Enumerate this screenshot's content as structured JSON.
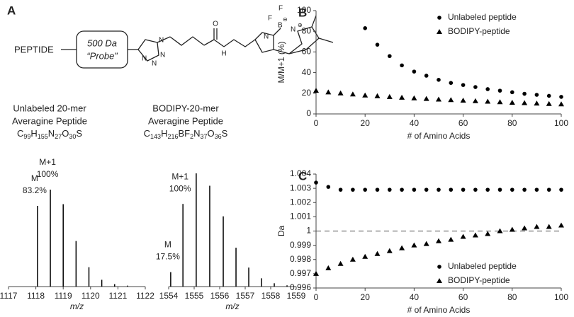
{
  "panel_a": {
    "panel": "A",
    "peptide": "PEPTIDE",
    "probe_mass": "500 Da",
    "probe_name": "“Probe”",
    "atoms": [
      "N",
      "N",
      "N",
      "N",
      "H",
      "O",
      "F",
      "F",
      "B",
      "⊖",
      "N",
      "N",
      "⊕"
    ],
    "compounds": [
      {
        "name": "Unlabeled 20-mer",
        "kind": "Averagine Peptide",
        "formula": [
          "C",
          "99",
          "H",
          "155",
          "N",
          "27",
          "O",
          "30",
          "S"
        ]
      },
      {
        "name": "BODIPY-20-mer",
        "kind": "Averagine Peptide",
        "formula": [
          "C",
          "143",
          "H",
          "216",
          "BF",
          "2",
          "N",
          "37",
          "O",
          "36",
          "S"
        ]
      }
    ]
  },
  "chart_data": [
    {
      "type": "stem",
      "x_label": "m/z",
      "x": [
        1118.06,
        1118.53,
        1119.0,
        1119.47,
        1119.94,
        1120.41,
        1120.88,
        1121.35
      ],
      "values": [
        83.2,
        100,
        85,
        47,
        20,
        7,
        2.5,
        1
      ],
      "peak_names": [
        "M",
        "M+1",
        null,
        null,
        null,
        null,
        null,
        null
      ],
      "value_labels": [
        "83.2%",
        "100%",
        null,
        null,
        null,
        null,
        null,
        null
      ],
      "color": "#000000",
      "xlim": [
        1117,
        1122
      ],
      "xticks": [
        1117,
        1118,
        1119,
        1120,
        1121,
        1122
      ]
    },
    {
      "type": "stem",
      "x_label": "m/z",
      "x": [
        1554.08,
        1554.56,
        1555.08,
        1555.61,
        1556.14,
        1556.64,
        1557.14,
        1557.64,
        1558.14,
        1558.64
      ],
      "values": [
        17.5,
        100,
        137,
        122,
        85,
        47,
        23,
        10,
        4,
        1.5
      ],
      "peak_names": [
        "M",
        "M+1",
        null,
        null,
        null,
        null,
        null,
        null,
        null,
        null
      ],
      "value_labels": [
        "17.5%",
        "100%",
        null,
        null,
        null,
        null,
        null,
        null,
        null,
        null
      ],
      "color": "#000000",
      "xlim": [
        1554,
        1559
      ],
      "xticks": [
        1554,
        1555,
        1556,
        1557,
        1558,
        1559
      ]
    },
    {
      "type": "scatter",
      "panel": "B",
      "x_label": "# of Amino Acids",
      "y_label": "M/M+1 (%)",
      "legend": "upper right",
      "xlim": [
        0,
        100
      ],
      "xticks": [
        0,
        20,
        40,
        60,
        80,
        100
      ],
      "ylim": [
        0,
        100
      ],
      "yticks": [
        0,
        20,
        40,
        60,
        80,
        100
      ],
      "series": [
        {
          "name": "Unlabeled peptide",
          "marker": "circle",
          "color": "#000000",
          "x": [
            20,
            25,
            30,
            35,
            40,
            45,
            50,
            55,
            60,
            65,
            70,
            75,
            80,
            85,
            90,
            95,
            100
          ],
          "values": [
            83,
            67,
            56,
            47,
            41,
            37,
            33,
            30,
            28,
            26,
            24,
            22.5,
            21,
            19.5,
            18.5,
            17.5,
            16.5
          ]
        },
        {
          "name": "BODIPY-peptide",
          "marker": "triangle",
          "color": "#000000",
          "x": [
            0,
            5,
            10,
            15,
            20,
            25,
            30,
            35,
            40,
            45,
            50,
            55,
            60,
            65,
            70,
            75,
            80,
            85,
            90,
            95,
            100
          ],
          "values": [
            22.5,
            21,
            20,
            19,
            18,
            17.3,
            16.5,
            15.8,
            15.2,
            14.6,
            14,
            13.5,
            13,
            12.5,
            12,
            11.5,
            11,
            10.6,
            10.2,
            9.8,
            9.4
          ]
        }
      ]
    },
    {
      "type": "scatter",
      "panel": "C",
      "x_label": "# of Amino Acids",
      "y_label": "Da",
      "legend": "lower right",
      "reference_line": 1,
      "xlim": [
        0,
        100
      ],
      "xticks": [
        0,
        20,
        40,
        60,
        80,
        100
      ],
      "ylim": [
        0.996,
        1.004
      ],
      "yticks": [
        0.996,
        0.997,
        0.998,
        0.999,
        1,
        1.001,
        1.002,
        1.003,
        1.004
      ],
      "series": [
        {
          "name": "Unlabeled peptide",
          "marker": "circle",
          "color": "#000000",
          "x": [
            0,
            5,
            10,
            15,
            20,
            25,
            30,
            35,
            40,
            45,
            50,
            55,
            60,
            65,
            70,
            75,
            80,
            85,
            90,
            95,
            100
          ],
          "values": [
            1.0034,
            1.0031,
            1.0029,
            1.0029,
            1.0029,
            1.0029,
            1.0029,
            1.0029,
            1.0029,
            1.0029,
            1.0029,
            1.0029,
            1.0029,
            1.0029,
            1.0029,
            1.0029,
            1.0029,
            1.0029,
            1.0029,
            1.0029,
            1.0029
          ]
        },
        {
          "name": "BODIPY-peptide",
          "marker": "triangle",
          "color": "#000000",
          "x": [
            0,
            5,
            10,
            15,
            20,
            25,
            30,
            35,
            40,
            45,
            50,
            55,
            60,
            65,
            70,
            75,
            80,
            85,
            90,
            95,
            100
          ],
          "values": [
            0.997,
            0.9974,
            0.9977,
            0.998,
            0.9982,
            0.9984,
            0.9986,
            0.9988,
            0.999,
            0.9991,
            0.9993,
            0.9994,
            0.9996,
            0.9997,
            0.9998,
            1.0,
            1.0001,
            1.0002,
            1.0003,
            1.0003,
            1.0004
          ]
        }
      ]
    }
  ]
}
